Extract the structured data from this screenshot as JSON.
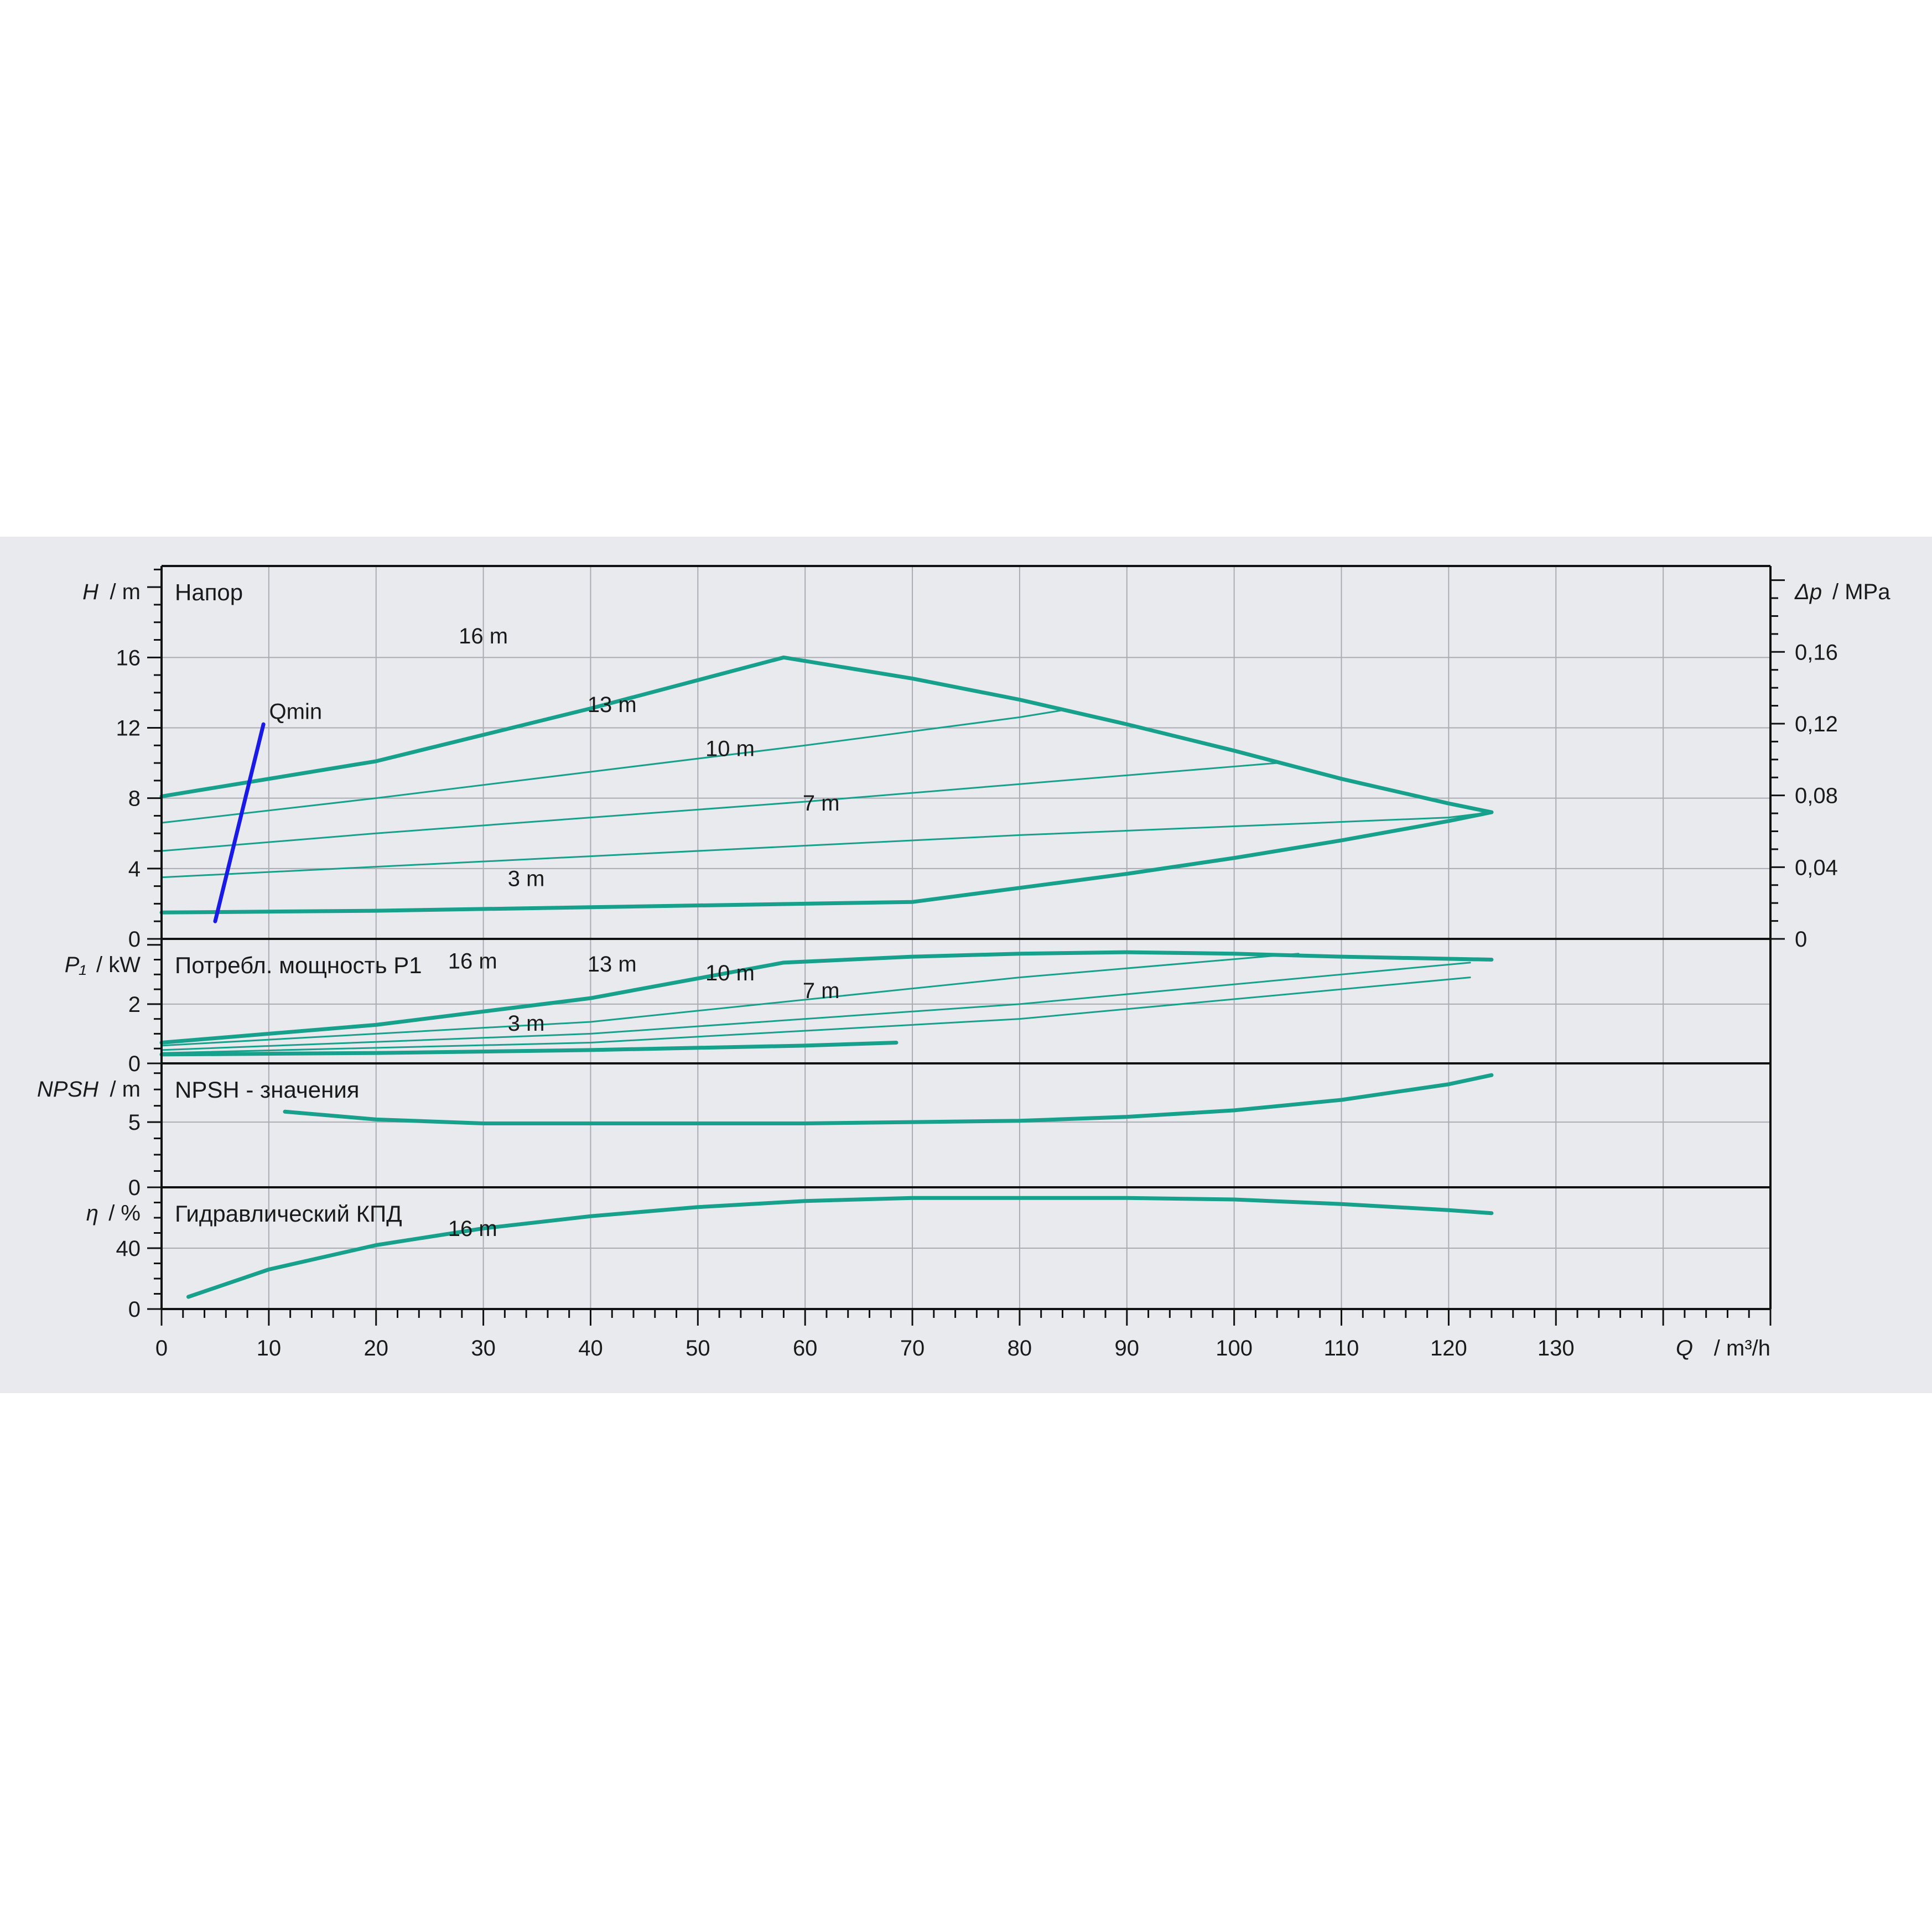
{
  "colors": {
    "curve": "#17a08c",
    "qmin": "#1a1ae6",
    "band": "#e8eaed",
    "grid": "#a9adb3",
    "axis": "#111111"
  },
  "x_axis": {
    "symbol": "Q",
    "unit": "/ m³/h",
    "min": 0,
    "max": 150,
    "ticks": [
      "0",
      "10",
      "20",
      "30",
      "40",
      "50",
      "60",
      "70",
      "80",
      "90",
      "100",
      "110",
      "120",
      "130"
    ],
    "tick_values": [
      0,
      10,
      20,
      30,
      40,
      50,
      60,
      70,
      80,
      90,
      100,
      110,
      120,
      130
    ]
  },
  "panels": {
    "head": {
      "title": "Напор",
      "axis_symbol": "H",
      "axis_unit": "/ m",
      "ticks": [
        "0",
        "4",
        "8",
        "12",
        "16"
      ],
      "tick_values": [
        0,
        4,
        8,
        12,
        16
      ],
      "ymin": 0,
      "ymax": 21.2,
      "right_axis": {
        "symbol": "Δp",
        "unit": "/ MPa",
        "ticks": [
          "0",
          "0,04",
          "0,08",
          "0,12",
          "0,16"
        ],
        "tick_values": [
          0,
          0.04,
          0.08,
          0.12,
          0.16
        ]
      }
    },
    "power": {
      "title": "Потребл. мощность P1",
      "axis_symbol": "P₁",
      "axis_unit": "/ kW",
      "ticks": [
        "0",
        "2"
      ],
      "tick_values": [
        0,
        2
      ],
      "ymin": 0,
      "ymax": 4.2
    },
    "npsh": {
      "title": "NPSH - значения",
      "axis_symbol": "NPSH",
      "axis_unit": "/ m",
      "ticks": [
        "0",
        "5"
      ],
      "tick_values": [
        0,
        5
      ],
      "ymin": 0,
      "ymax": 9.5
    },
    "eff": {
      "title": "Гидравлический КПД",
      "axis_symbol": "η",
      "axis_unit": "/ %",
      "ticks": [
        "0",
        "40"
      ],
      "tick_values": [
        0,
        40
      ],
      "ymin": 0,
      "ymax": 80
    }
  },
  "chart_data": [
    {
      "type": "line",
      "title": "Напор",
      "xlabel": "Q / m³/h",
      "ylabel": "H / m",
      "xlim": [
        0,
        150
      ],
      "ylim": [
        0,
        21.2
      ],
      "grid": true,
      "series": [
        {
          "name": "16 m",
          "x": [
            0,
            20,
            40,
            58,
            60,
            70,
            80,
            90,
            100,
            110,
            120,
            124
          ],
          "y": [
            8.1,
            10.1,
            13.1,
            16.0,
            15.8,
            14.8,
            13.6,
            12.2,
            10.7,
            9.1,
            7.7,
            7.2
          ]
        },
        {
          "name": "13 m",
          "x": [
            0,
            20,
            40,
            60,
            80,
            84
          ],
          "y": [
            6.6,
            8.0,
            9.5,
            11.0,
            12.6,
            13.0
          ]
        },
        {
          "name": "10 m",
          "x": [
            0,
            20,
            40,
            60,
            80,
            100,
            104
          ],
          "y": [
            5.0,
            6.0,
            6.9,
            7.8,
            8.8,
            9.8,
            10.0
          ]
        },
        {
          "name": "7 m",
          "x": [
            0,
            20,
            40,
            60,
            80,
            100,
            120,
            124
          ],
          "y": [
            3.5,
            4.1,
            4.7,
            5.3,
            5.9,
            6.4,
            6.9,
            7.2
          ]
        },
        {
          "name": "3 m",
          "x": [
            0,
            20,
            40,
            60,
            70,
            80,
            90,
            100,
            110,
            120,
            124
          ],
          "y": [
            1.5,
            1.6,
            1.8,
            2.0,
            2.1,
            2.9,
            3.7,
            4.6,
            5.6,
            6.7,
            7.2
          ]
        },
        {
          "name": "Qmin",
          "x": [
            5,
            9.5
          ],
          "y": [
            1.0,
            12.2
          ]
        }
      ]
    },
    {
      "type": "line",
      "title": "Потребл. мощность P1",
      "xlabel": "Q / m³/h",
      "ylabel": "P₁ / kW",
      "xlim": [
        0,
        150
      ],
      "ylim": [
        0,
        4.2
      ],
      "grid": true,
      "series": [
        {
          "name": "16 m",
          "x": [
            0,
            20,
            40,
            58,
            70,
            80,
            90,
            100,
            110,
            124
          ],
          "y": [
            0.7,
            1.3,
            2.2,
            3.4,
            3.6,
            3.7,
            3.75,
            3.7,
            3.6,
            3.5
          ]
        },
        {
          "name": "13 m",
          "x": [
            0,
            40,
            80,
            106
          ],
          "y": [
            0.6,
            1.4,
            2.9,
            3.7
          ]
        },
        {
          "name": "10 m",
          "x": [
            0,
            40,
            80,
            122
          ],
          "y": [
            0.45,
            1.0,
            2.0,
            3.4
          ]
        },
        {
          "name": "7 m",
          "x": [
            0,
            40,
            80,
            122
          ],
          "y": [
            0.35,
            0.7,
            1.5,
            2.9
          ]
        },
        {
          "name": "3 m",
          "x": [
            0,
            20,
            40,
            60,
            68.5
          ],
          "y": [
            0.3,
            0.35,
            0.45,
            0.6,
            0.7
          ]
        }
      ]
    },
    {
      "type": "line",
      "title": "NPSH - значения",
      "xlabel": "Q / m³/h",
      "ylabel": "NPSH / m",
      "xlim": [
        0,
        150
      ],
      "ylim": [
        0,
        9.5
      ],
      "grid": true,
      "series": [
        {
          "name": "",
          "x": [
            11.5,
            20,
            30,
            40,
            50,
            60,
            70,
            80,
            90,
            100,
            110,
            120,
            124
          ],
          "y": [
            5.8,
            5.2,
            4.9,
            4.9,
            4.9,
            4.9,
            5.0,
            5.1,
            5.4,
            5.9,
            6.7,
            7.9,
            8.6
          ]
        }
      ]
    },
    {
      "type": "line",
      "title": "Гидравлический КПД",
      "xlabel": "Q / m³/h",
      "ylabel": "η / %",
      "xlim": [
        0,
        150
      ],
      "ylim": [
        0,
        80
      ],
      "grid": true,
      "series": [
        {
          "name": "16 m",
          "x": [
            2.5,
            10,
            20,
            30,
            40,
            50,
            60,
            70,
            80,
            90,
            100,
            110,
            120,
            124
          ],
          "y": [
            8,
            26,
            42,
            53,
            61,
            67,
            71,
            73,
            73,
            73,
            72,
            69,
            65,
            63
          ]
        }
      ]
    }
  ]
}
